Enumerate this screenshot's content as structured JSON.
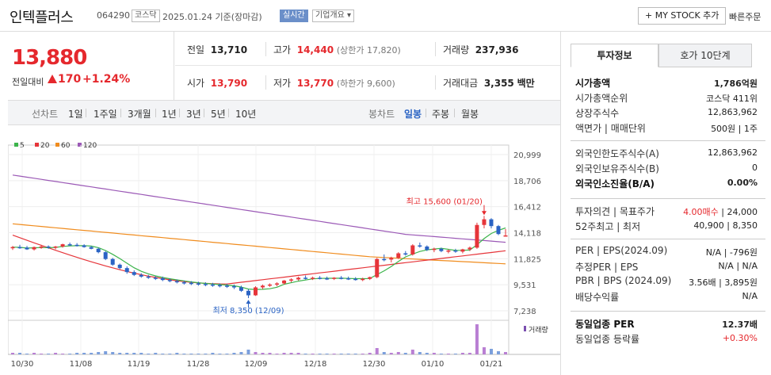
{
  "header": {
    "name": "인텍플러스",
    "code": "064290",
    "market": "코스닥",
    "date_text": "2025.01.24 기준(장마감)",
    "live": "실시간",
    "info": "기업개요 ▾",
    "mystock": "+ MY STOCK 추가",
    "quick_order": "빠른주문"
  },
  "quote": {
    "price": "13,880",
    "change_label": "전일대비",
    "change": "170",
    "change_pct": "+1.24%",
    "prev_label": "전일",
    "prev": "13,710",
    "high_label": "고가",
    "high": "14,440",
    "upper_limit": "(상한가 17,820)",
    "volume_label": "거래량",
    "volume": "237,936",
    "open_label": "시가",
    "open": "13,790",
    "low_label": "저가",
    "low": "13,770",
    "lower_limit": "(하한가 9,600)",
    "amount_label": "거래대금",
    "amount": "3,355",
    "amount_unit": "백만"
  },
  "period_bar": {
    "line_label": "선차트",
    "periods": [
      "1일",
      "1주일",
      "3개월",
      "1년",
      "3년",
      "5년",
      "10년"
    ],
    "candle_label": "봉차트",
    "candles": [
      "일봉",
      "주봉",
      "월봉"
    ],
    "selected_candle": "일봉"
  },
  "chart_data": {
    "type": "candlestick",
    "legend": [
      {
        "name": "5",
        "color": "#3cb44b"
      },
      {
        "name": "20",
        "color": "#e6353a"
      },
      {
        "name": "60",
        "color": "#f08c1e"
      },
      {
        "name": "120",
        "color": "#9b59b6"
      }
    ],
    "y_ticks": [
      "20,999",
      "18,706",
      "16,412",
      "14,118",
      "11,825",
      "9,531",
      "7,238"
    ],
    "ylim": [
      7238,
      20999
    ],
    "x_ticks": [
      "10/30",
      "11/08",
      "11/19",
      "11/28",
      "12/09",
      "12/18",
      "12/30",
      "01/10",
      "01/21"
    ],
    "high_annotation": "최고 15,600 (01/20)",
    "low_annotation": "최저 8,350 (12/09)",
    "volume_label": "거래량",
    "up_color": "#e6353a",
    "down_color": "#2a63c4"
  },
  "investment": {
    "tab_active": "투자정보",
    "tab_inactive": "호가 10단계",
    "rows1": [
      {
        "label": "시가총액",
        "value": "1,786억원",
        "bold": true
      },
      {
        "label": "시가총액순위",
        "value": "코스닥 411위"
      },
      {
        "label": "상장주식수",
        "value": "12,863,962"
      },
      {
        "label": "액면가 | 매매단위",
        "value": "500원 | 1주"
      }
    ],
    "rows2": [
      {
        "label": "외국인한도주식수(A)",
        "value": "12,863,962"
      },
      {
        "label": "외국인보유주식수(B)",
        "value": "0"
      },
      {
        "label": "외국인소진율(B/A)",
        "value": "0.00%",
        "bold": true
      }
    ],
    "rows3": [
      {
        "label": "투자의견 | 목표주가",
        "value_red": "4.00매수",
        "value": " | 24,000"
      },
      {
        "label": "52주최고 | 최저",
        "value": "40,900 | 8,350"
      }
    ],
    "rows4": [
      {
        "label": "PER | EPS(2024.09)",
        "value": "N/A | -796원"
      },
      {
        "label": "추정PER | EPS",
        "value": "N/A | N/A"
      },
      {
        "label": "PBR | BPS (2024.09)",
        "value": "3.56배 | 3,895원"
      },
      {
        "label": "배당수익률",
        "value": "N/A"
      }
    ],
    "rows5": [
      {
        "label": "동일업종 PER",
        "value": "12.37배",
        "bold": true
      },
      {
        "label": "동일업종 등락률",
        "value": "+0.30%",
        "red": true
      }
    ]
  }
}
